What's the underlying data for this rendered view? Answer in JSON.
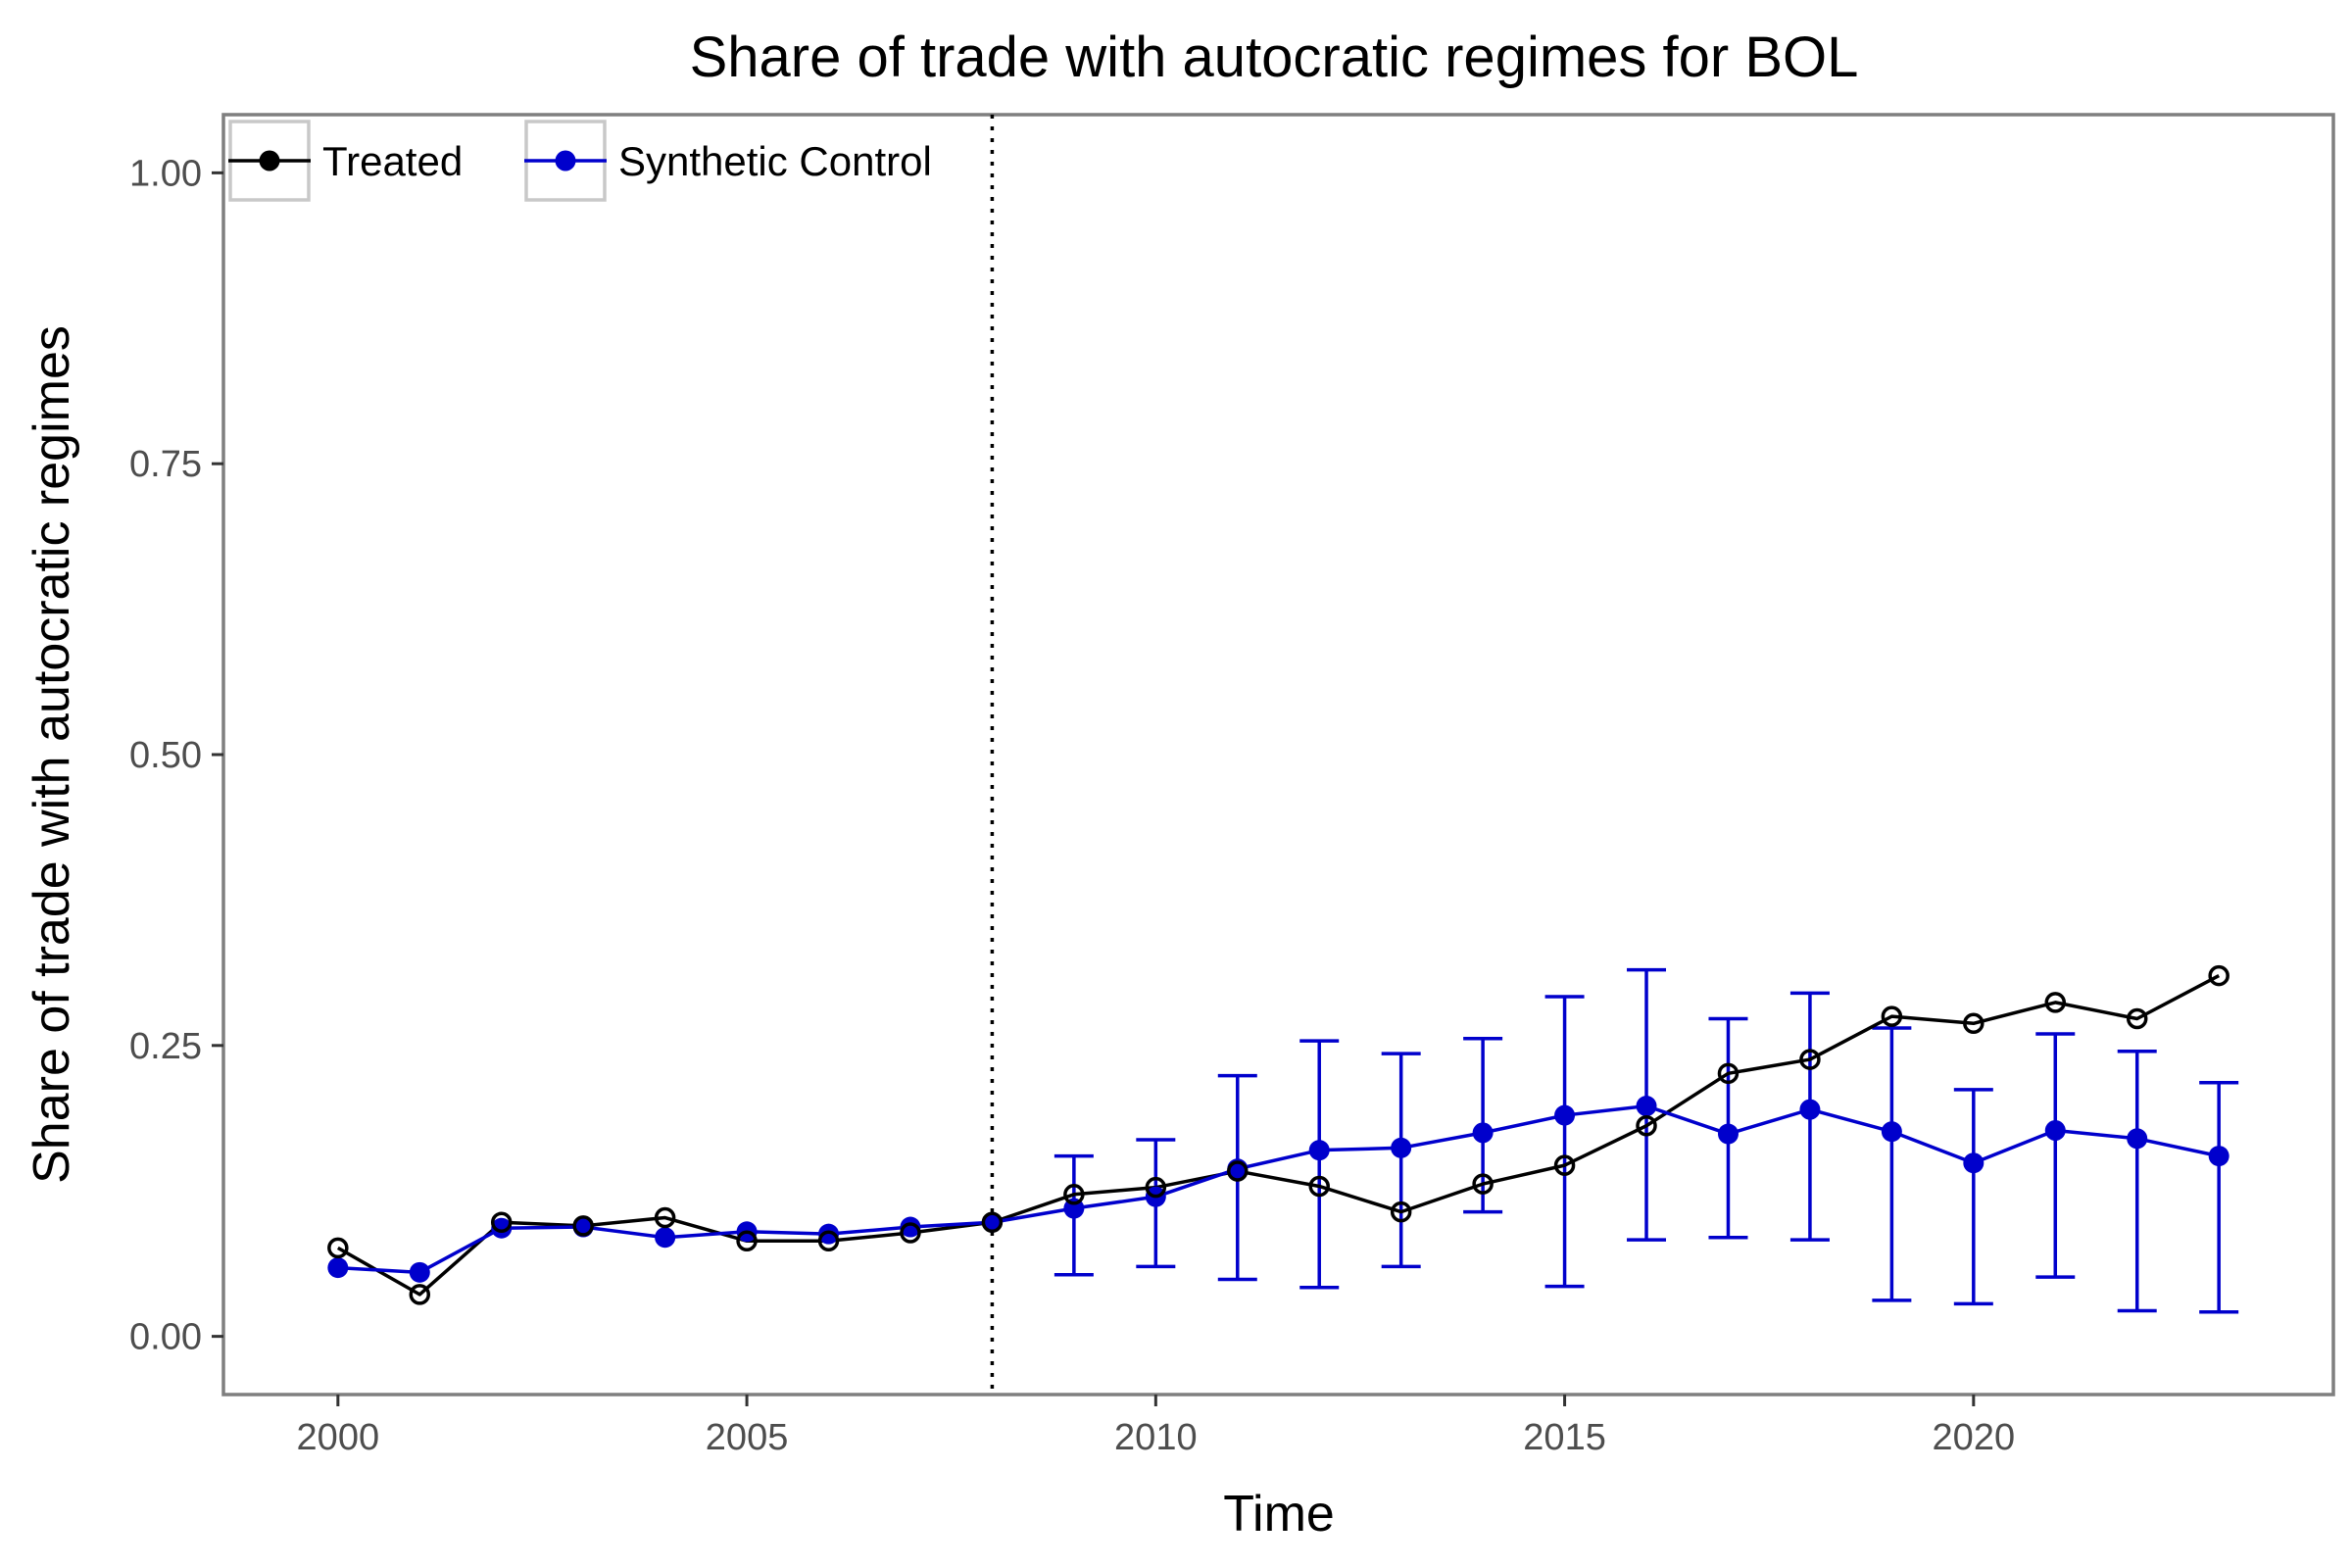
{
  "chart_data": {
    "type": "line",
    "title": "Share of trade with autocratic regimes for BOL",
    "xlabel": "Time",
    "ylabel": "Share of trade with autocratic regimes",
    "xlim": [
      1998.6,
      2024.4
    ],
    "ylim": [
      -0.05,
      1.05
    ],
    "x_ticks": [
      2000,
      2005,
      2010,
      2015,
      2020
    ],
    "y_ticks": [
      0,
      0.25,
      0.5,
      0.75,
      1.0
    ],
    "y_tick_labels": [
      "0.00",
      "0.25",
      "0.50",
      "0.75",
      "1.00"
    ],
    "grid": false,
    "legend_position": "top-left",
    "treatment_year": 2008,
    "x": [
      2000,
      2001,
      2002,
      2003,
      2004,
      2005,
      2006,
      2007,
      2008,
      2009,
      2010,
      2011,
      2012,
      2013,
      2014,
      2015,
      2016,
      2017,
      2018,
      2019,
      2020,
      2021,
      2022,
      2023
    ],
    "series": [
      {
        "name": "Treated",
        "color": "#000000",
        "marker": "open-circle",
        "values": [
          0.076,
          0.036,
          0.098,
          0.095,
          0.102,
          0.082,
          0.082,
          0.089,
          0.098,
          0.122,
          0.128,
          0.142,
          0.129,
          0.107,
          0.131,
          0.147,
          0.181,
          0.226,
          0.238,
          0.275,
          0.269,
          0.287,
          0.273,
          0.31
        ]
      },
      {
        "name": "Synthetic Control",
        "color": "#0000cc",
        "marker": "filled-circle",
        "values": [
          0.059,
          0.055,
          0.093,
          0.094,
          0.085,
          0.09,
          0.088,
          0.094,
          0.098,
          0.11,
          0.12,
          0.144,
          0.16,
          0.162,
          0.175,
          0.19,
          0.198,
          0.174,
          0.195,
          0.176,
          0.149,
          0.177,
          0.17,
          0.155
        ],
        "error_bars": {
          "x": [
            2009,
            2010,
            2011,
            2012,
            2013,
            2014,
            2015,
            2016,
            2017,
            2018,
            2019,
            2020,
            2021,
            2022,
            2023
          ],
          "lower": [
            0.053,
            0.06,
            0.049,
            0.042,
            0.06,
            0.107,
            0.043,
            0.083,
            0.085,
            0.083,
            0.031,
            0.028,
            0.051,
            0.022,
            0.021
          ],
          "upper": [
            0.155,
            0.169,
            0.224,
            0.254,
            0.243,
            0.256,
            0.292,
            0.315,
            0.273,
            0.295,
            0.265,
            0.212,
            0.26,
            0.245,
            0.218
          ]
        }
      }
    ]
  }
}
